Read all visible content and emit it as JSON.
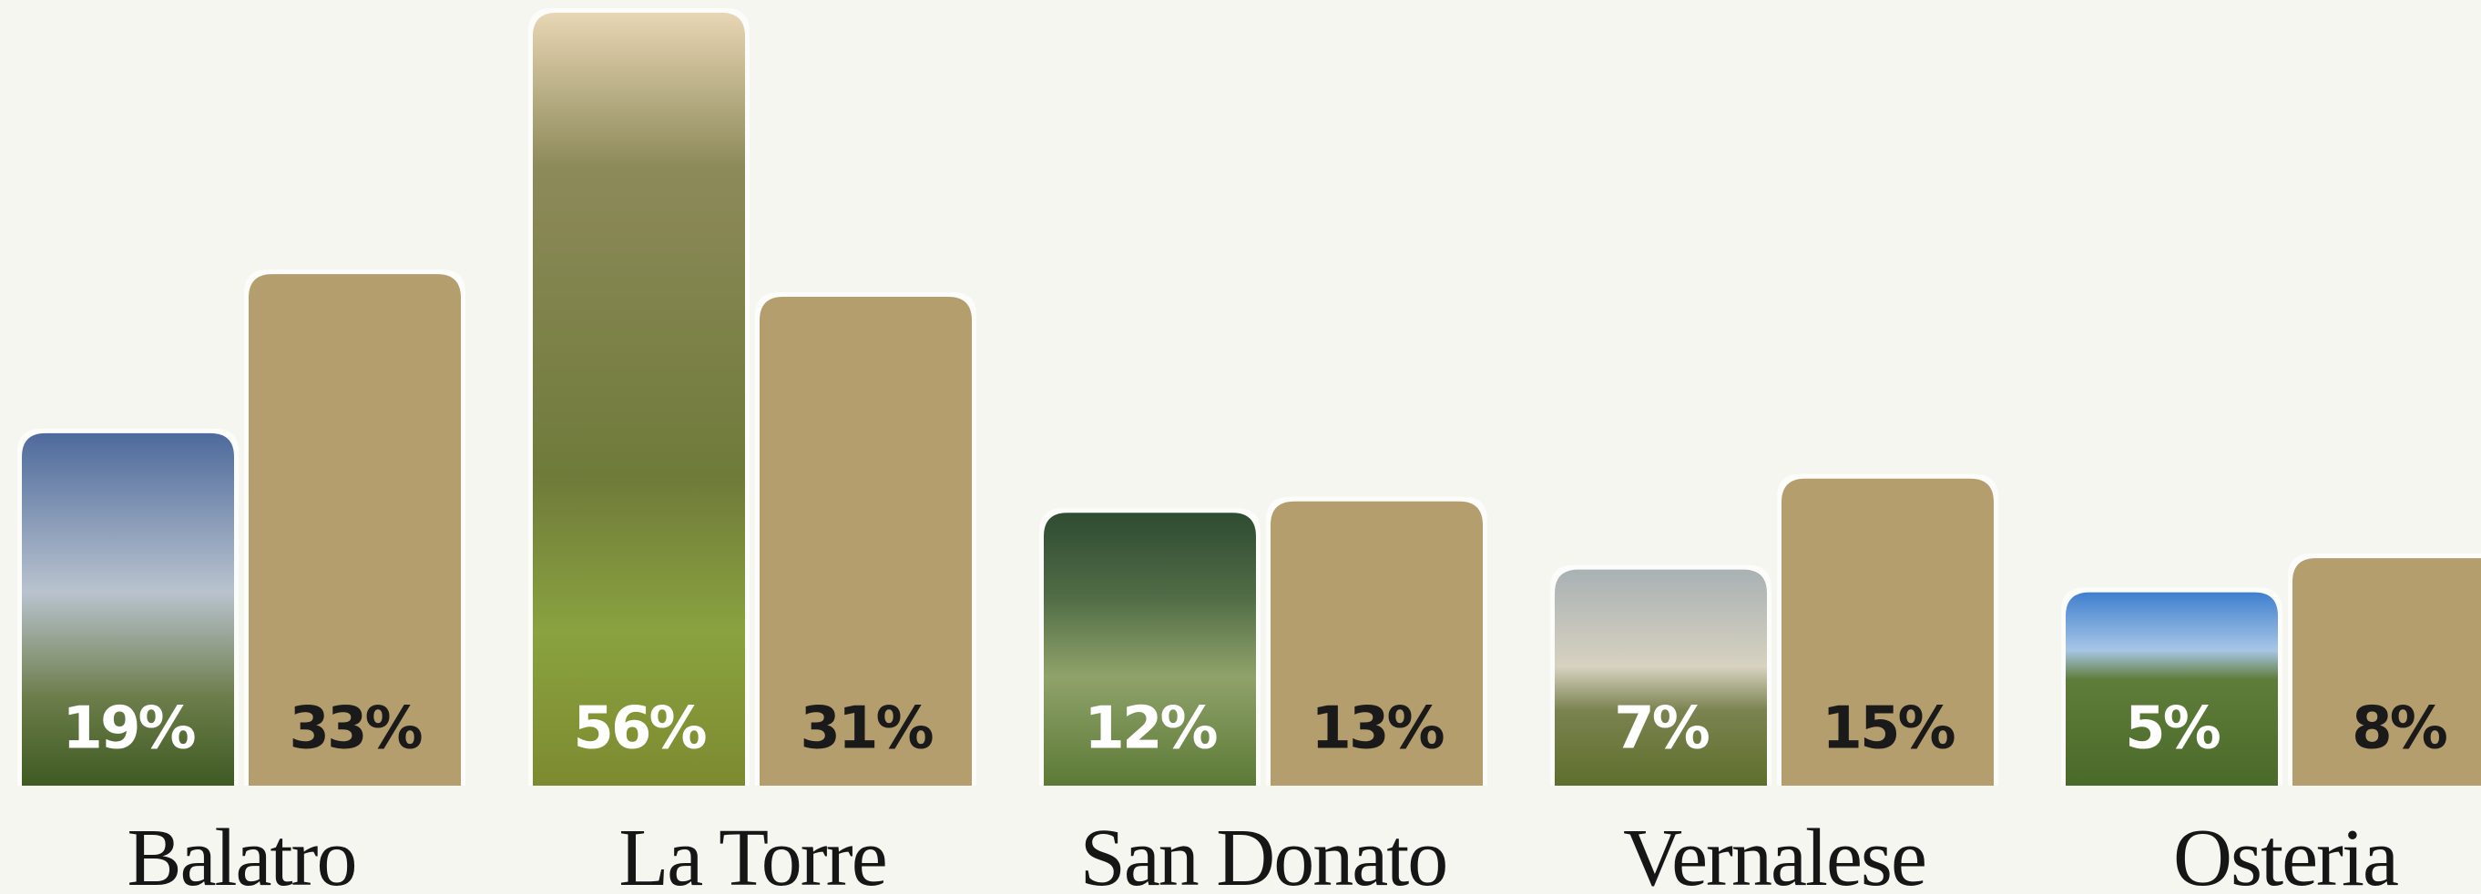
{
  "chart_data": {
    "type": "bar",
    "categories": [
      "Balatro",
      "La Torre",
      "San Donato",
      "Vernalese",
      "Osteria"
    ],
    "series": [
      {
        "color": "#6f8a3c",
        "values": [
          19,
          56,
          12,
          7,
          5
        ],
        "value_labels": [
          "19%",
          "56%",
          "12%",
          "7%",
          "5%"
        ]
      },
      {
        "color": "#b59e6e",
        "values": [
          33,
          31,
          13,
          15,
          8
        ],
        "value_labels": [
          "33%",
          "31%",
          "13%",
          "15%",
          "8%"
        ]
      }
    ]
  }
}
